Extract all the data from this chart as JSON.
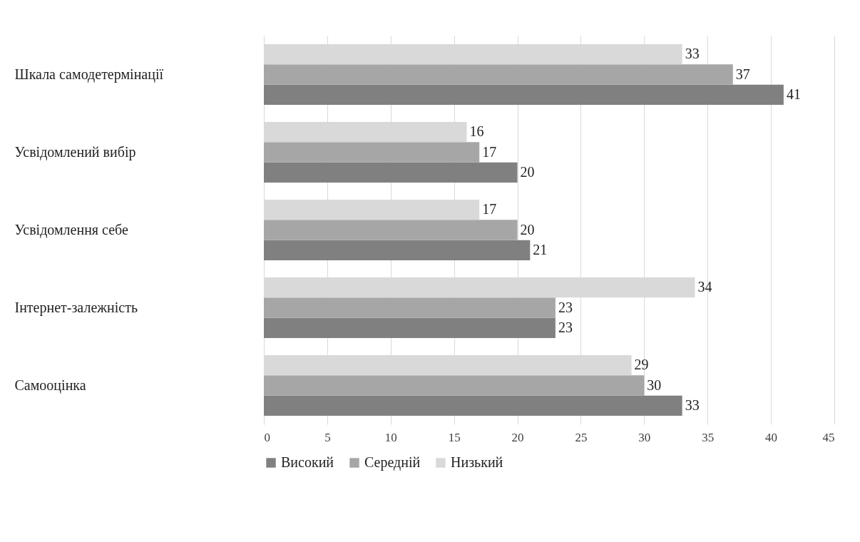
{
  "chart_data": {
    "type": "bar",
    "orientation": "horizontal",
    "categories": [
      "Шкала самодетермінації",
      "Усвідомлений вибір",
      "Усвідомлення себе",
      "Інтернет-залежність",
      "Самооцінка"
    ],
    "series": [
      {
        "name": "Високий",
        "color": "#808080",
        "values": [
          41,
          20,
          21,
          23,
          33
        ]
      },
      {
        "name": "Середній",
        "color": "#a6a6a6",
        "values": [
          37,
          17,
          20,
          23,
          30
        ]
      },
      {
        "name": "Низький",
        "color": "#d9d9d9",
        "values": [
          33,
          16,
          17,
          34,
          29
        ]
      }
    ],
    "xlim": [
      0,
      45
    ],
    "xticks": [
      0,
      5,
      10,
      15,
      20,
      25,
      30,
      35,
      40,
      45
    ],
    "grid": "x",
    "legend": "bottom",
    "data_labels": true
  }
}
